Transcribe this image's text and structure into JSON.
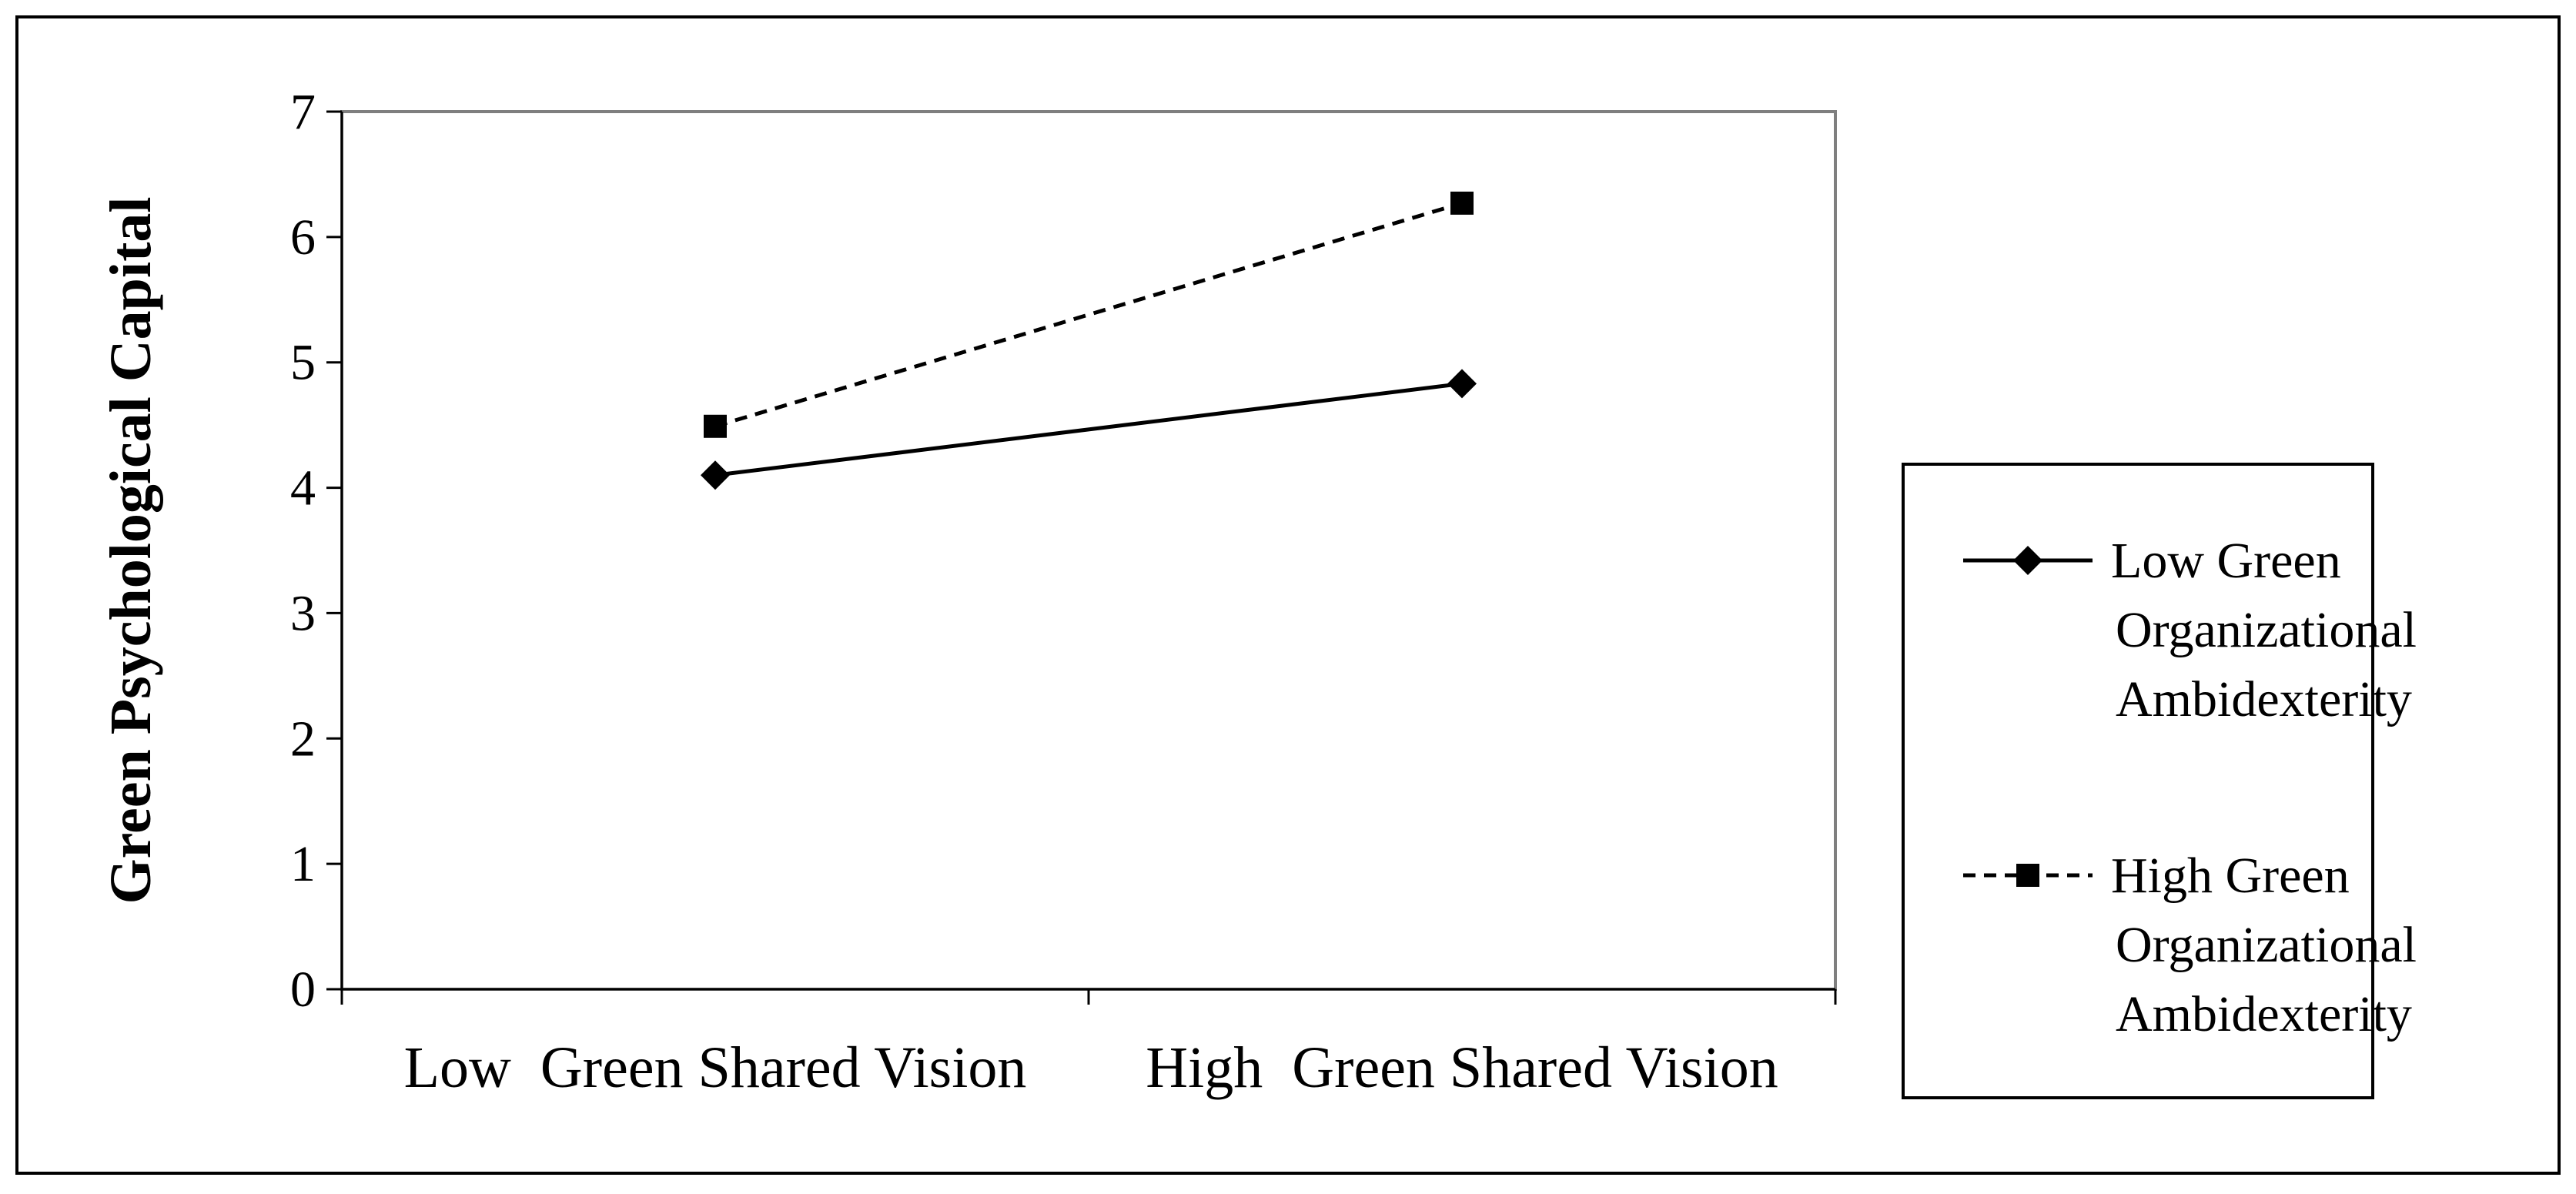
{
  "chart_data": {
    "type": "line",
    "ylabel": "Green Psychological Capital",
    "ylim": [
      0,
      7
    ],
    "yticks": [
      0,
      1,
      2,
      3,
      4,
      5,
      6,
      7
    ],
    "categories": [
      "Low  Green Shared Vision",
      "High  Green Shared Vision"
    ],
    "grid": false,
    "legend_position": "right",
    "series": [
      {
        "name_lines": [
          "Low Green",
          "Organizational",
          "Ambidexterity"
        ],
        "values": [
          4.1,
          4.83
        ],
        "line_style": "solid",
        "marker": "diamond",
        "color": "#000000"
      },
      {
        "name_lines": [
          "High Green",
          "Organizational",
          "Ambidexterity"
        ],
        "values": [
          4.49,
          6.27
        ],
        "line_style": "dashed",
        "marker": "square",
        "color": "#000000"
      }
    ]
  }
}
